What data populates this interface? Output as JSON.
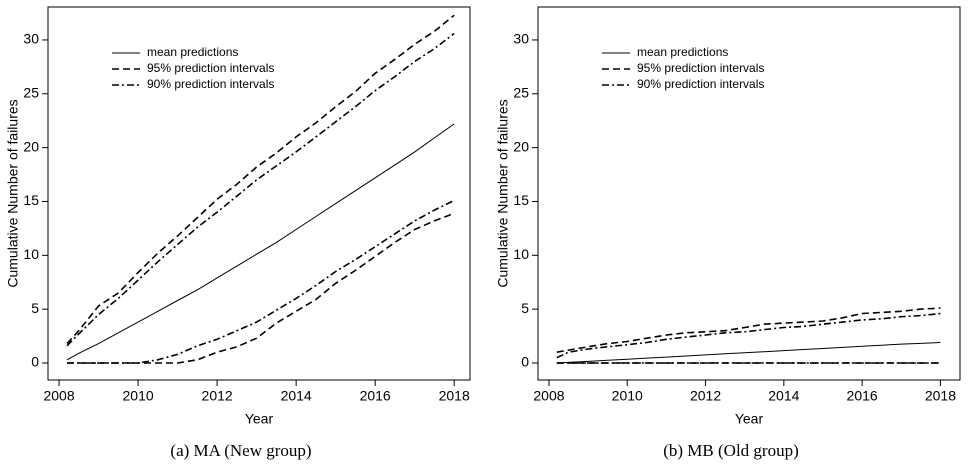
{
  "chart_data": [
    {
      "type": "line",
      "caption": "(a) MA (New group)",
      "xlabel": "Year",
      "ylabel": "Cumulative Number of failures",
      "x": [
        2008.2,
        2008.5,
        2009,
        2009.5,
        2010,
        2010.5,
        2011,
        2011.5,
        2012,
        2012.5,
        2013,
        2013.5,
        2014,
        2014.5,
        2015,
        2015.5,
        2016,
        2016.5,
        2017,
        2017.5,
        2018
      ],
      "xlim": [
        2007.72,
        2018.4
      ],
      "xticks": [
        2008,
        2010,
        2012,
        2014,
        2016,
        2018
      ],
      "ylim": [
        -1.58,
        33.06
      ],
      "yticks": [
        0,
        5,
        10,
        15,
        20,
        25,
        30
      ],
      "series": [
        {
          "name": "mean predictions",
          "color": "#000000",
          "style": "solid",
          "values": [
            0.3,
            0.9,
            1.8,
            2.8,
            3.8,
            4.8,
            5.8,
            6.8,
            7.9,
            9.0,
            10.1,
            11.2,
            12.4,
            13.6,
            14.8,
            16.0,
            17.2,
            18.4,
            19.6,
            20.9,
            22.2
          ]
        },
        {
          "name": "95% prediction intervals",
          "color": "#000000",
          "style": "dashed",
          "values": [
            1.8,
            3.0,
            5.3,
            6.5,
            8.4,
            10.2,
            11.8,
            13.5,
            15.2,
            16.6,
            18.2,
            19.5,
            21.0,
            22.3,
            23.8,
            25.2,
            26.9,
            28.2,
            29.6,
            30.8,
            32.3
          ]
        },
        {
          "name": "90% prediction intervals",
          "color": "#000000",
          "style": "dashdot",
          "values": [
            1.6,
            2.7,
            4.5,
            6.0,
            7.7,
            9.4,
            11.0,
            12.6,
            14.0,
            15.5,
            17.0,
            18.3,
            19.6,
            21.0,
            22.4,
            23.8,
            25.3,
            26.6,
            28.0,
            29.2,
            30.6
          ]
        },
        {
          "color": "#000000",
          "style": "dashed",
          "values": [
            0,
            0,
            0,
            0,
            0,
            0,
            0,
            0.3,
            1.0,
            1.5,
            2.3,
            3.7,
            4.8,
            5.9,
            7.4,
            8.6,
            9.9,
            11.2,
            12.4,
            13.2,
            13.9
          ]
        },
        {
          "color": "#000000",
          "style": "dashdot",
          "values": [
            0,
            0,
            0,
            0,
            0,
            0.3,
            0.8,
            1.6,
            2.2,
            3.0,
            3.8,
            4.9,
            6.0,
            7.2,
            8.5,
            9.6,
            10.8,
            12.0,
            13.2,
            14.2,
            15.1
          ]
        }
      ]
    },
    {
      "type": "line",
      "caption": "(b) MB (Old group)",
      "xlabel": "Year",
      "ylabel": "Cumulative Number of failures",
      "x": [
        2008.2,
        2008.5,
        2009,
        2009.5,
        2010,
        2010.5,
        2011,
        2011.5,
        2012,
        2012.5,
        2013,
        2013.5,
        2014,
        2014.5,
        2015,
        2015.5,
        2016,
        2016.5,
        2017,
        2017.5,
        2018
      ],
      "xlim": [
        2007.72,
        2018.5
      ],
      "xticks": [
        2008,
        2010,
        2012,
        2014,
        2016,
        2018
      ],
      "ylim": [
        -1.58,
        33.06
      ],
      "yticks": [
        0,
        5,
        10,
        15,
        20,
        25,
        30
      ],
      "series": [
        {
          "name": "mean predictions",
          "color": "#000000",
          "style": "solid",
          "values": [
            0.0,
            0.05,
            0.15,
            0.25,
            0.35,
            0.45,
            0.55,
            0.65,
            0.75,
            0.85,
            0.95,
            1.05,
            1.15,
            1.25,
            1.35,
            1.45,
            1.55,
            1.65,
            1.75,
            1.82,
            1.9
          ]
        },
        {
          "name": "95% prediction intervals",
          "color": "#000000",
          "style": "dashed",
          "values": [
            1.0,
            1.2,
            1.5,
            1.8,
            2.0,
            2.3,
            2.6,
            2.8,
            2.9,
            3.0,
            3.3,
            3.6,
            3.7,
            3.8,
            3.9,
            4.2,
            4.6,
            4.7,
            4.8,
            5.0,
            5.1
          ]
        },
        {
          "name": "90% prediction intervals",
          "color": "#000000",
          "style": "dashdot",
          "values": [
            0.5,
            1.0,
            1.3,
            1.5,
            1.7,
            1.9,
            2.2,
            2.4,
            2.6,
            2.8,
            2.9,
            3.1,
            3.3,
            3.4,
            3.6,
            3.8,
            4.0,
            4.1,
            4.3,
            4.4,
            4.6
          ]
        },
        {
          "color": "#000000",
          "style": "dashed",
          "values": [
            0,
            0,
            0,
            0,
            0,
            0,
            0,
            0,
            0,
            0,
            0,
            0,
            0,
            0,
            0,
            0,
            0,
            0,
            0,
            0,
            0
          ]
        },
        {
          "color": "#000000",
          "style": "dashdot",
          "values": [
            0,
            0,
            0,
            0,
            0,
            0,
            0,
            0,
            0,
            0,
            0,
            0,
            0,
            0,
            0,
            0,
            0,
            0,
            0,
            0,
            0
          ]
        }
      ]
    }
  ]
}
